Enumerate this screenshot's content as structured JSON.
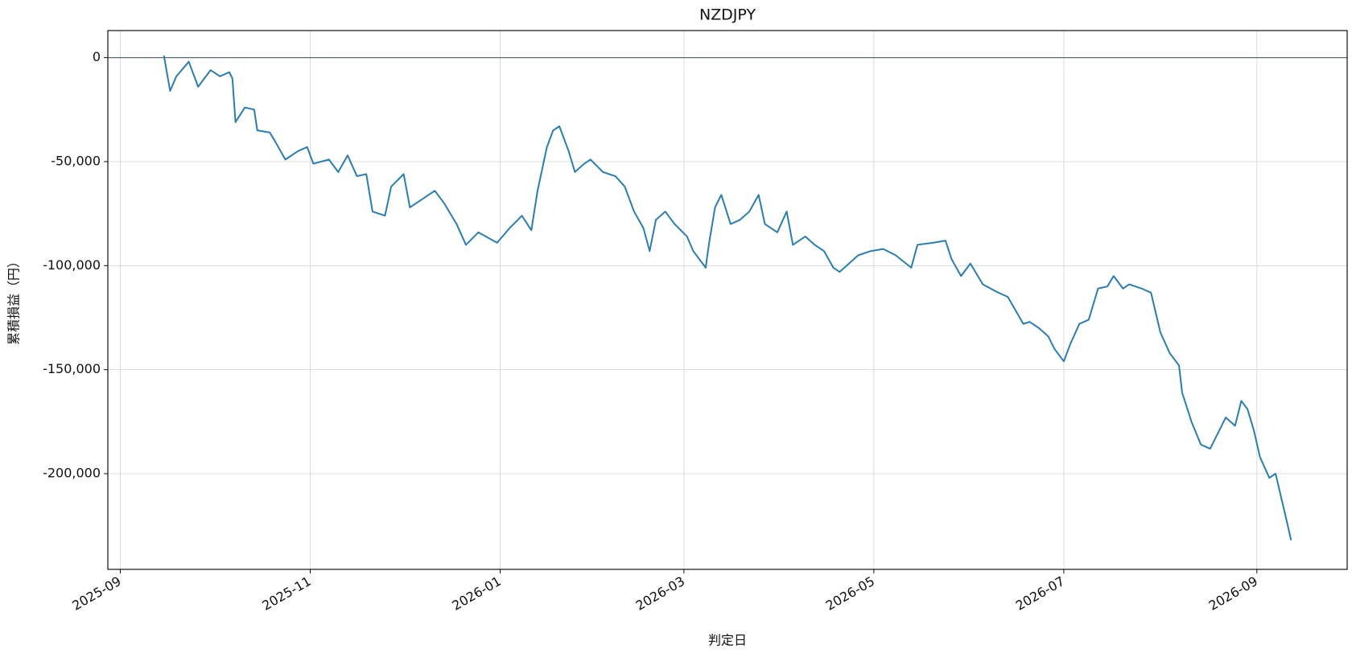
{
  "chart_data": {
    "type": "line",
    "title": "NZDJPY",
    "xlabel": "判定日",
    "ylabel": "累積損益（円）",
    "x": [
      "2025-09-15",
      "2025-09-17",
      "2025-09-19",
      "2025-09-23",
      "2025-09-26",
      "2025-09-30",
      "2025-10-03",
      "2025-10-06",
      "2025-10-07",
      "2025-10-08",
      "2025-10-11",
      "2025-10-14",
      "2025-10-15",
      "2025-10-19",
      "2025-10-21",
      "2025-10-24",
      "2025-10-28",
      "2025-10-31",
      "2025-11-02",
      "2025-11-07",
      "2025-11-10",
      "2025-11-13",
      "2025-11-16",
      "2025-11-19",
      "2025-11-21",
      "2025-11-25",
      "2025-11-27",
      "2025-12-01",
      "2025-12-03",
      "2025-12-07",
      "2025-12-11",
      "2025-12-14",
      "2025-12-18",
      "2025-12-21",
      "2025-12-25",
      "2025-12-31",
      "2026-01-04",
      "2026-01-08",
      "2026-01-11",
      "2026-01-13",
      "2026-01-16",
      "2026-01-18",
      "2026-01-20",
      "2026-01-23",
      "2026-01-25",
      "2026-01-28",
      "2026-01-30",
      "2026-02-03",
      "2026-02-07",
      "2026-02-10",
      "2026-02-13",
      "2026-02-16",
      "2026-02-18",
      "2026-02-20",
      "2026-02-23",
      "2026-02-26",
      "2026-03-02",
      "2026-03-04",
      "2026-03-08",
      "2026-03-09",
      "2026-03-11",
      "2026-03-13",
      "2026-03-16",
      "2026-03-19",
      "2026-03-22",
      "2026-03-25",
      "2026-03-27",
      "2026-03-31",
      "2026-04-03",
      "2026-04-05",
      "2026-04-09",
      "2026-04-12",
      "2026-04-15",
      "2026-04-18",
      "2026-04-20",
      "2026-04-23",
      "2026-04-26",
      "2026-04-30",
      "2026-05-04",
      "2026-05-08",
      "2026-05-13",
      "2026-05-15",
      "2026-05-20",
      "2026-05-24",
      "2026-05-26",
      "2026-05-29",
      "2026-06-01",
      "2026-06-05",
      "2026-06-10",
      "2026-06-13",
      "2026-06-18",
      "2026-06-20",
      "2026-06-23",
      "2026-06-26",
      "2026-06-28",
      "2026-07-01",
      "2026-07-03",
      "2026-07-06",
      "2026-07-09",
      "2026-07-12",
      "2026-07-15",
      "2026-07-17",
      "2026-07-20",
      "2026-07-22",
      "2026-07-26",
      "2026-07-29",
      "2026-08-01",
      "2026-08-04",
      "2026-08-07",
      "2026-08-08",
      "2026-08-11",
      "2026-08-14",
      "2026-08-17",
      "2026-08-20",
      "2026-08-22",
      "2026-08-25",
      "2026-08-27",
      "2026-08-29",
      "2026-08-31",
      "2026-09-02",
      "2026-09-05",
      "2026-09-07",
      "2026-09-10",
      "2026-09-12"
    ],
    "series": [
      {
        "name": "NZDJPY",
        "color": "#2a7db1",
        "values": [
          1000,
          -16000,
          -9000,
          -2000,
          -14000,
          -6000,
          -9000,
          -7000,
          -10000,
          -31000,
          -24000,
          -25000,
          -35000,
          -36000,
          -41000,
          -49000,
          -45000,
          -43000,
          -51000,
          -49000,
          -55000,
          -47000,
          -57000,
          -56000,
          -74000,
          -76000,
          -62000,
          -56000,
          -72000,
          -68000,
          -64000,
          -70000,
          -80000,
          -90000,
          -84000,
          -89000,
          -82000,
          -76000,
          -83000,
          -64000,
          -43000,
          -35000,
          -33000,
          -45000,
          -55000,
          -51000,
          -49000,
          -55000,
          -57000,
          -62000,
          -74000,
          -82000,
          -93000,
          -78000,
          -74000,
          -80000,
          -86000,
          -93000,
          -101000,
          -90000,
          -72000,
          -66000,
          -80000,
          -78000,
          -74000,
          -66000,
          -80000,
          -84000,
          -74000,
          -90000,
          -86000,
          -90000,
          -93000,
          -101000,
          -103000,
          -99000,
          -95000,
          -93000,
          -92000,
          -95000,
          -101000,
          -90000,
          -89000,
          -88000,
          -97000,
          -105000,
          -99000,
          -109000,
          -113000,
          -115000,
          -128000,
          -127000,
          -130000,
          -134000,
          -140000,
          -146000,
          -138000,
          -128000,
          -126000,
          -111000,
          -110000,
          -105000,
          -111000,
          -109000,
          -111000,
          -113000,
          -132000,
          -142000,
          -148000,
          -161000,
          -175000,
          -186000,
          -188000,
          -179000,
          -173000,
          -177000,
          -165000,
          -169000,
          -179000,
          -192000,
          -202000,
          -200000,
          -219000,
          -232000
        ]
      }
    ],
    "xlim": [
      "2025-08-28",
      "2026-09-30"
    ],
    "xticks": [
      "2025-09",
      "2025-11",
      "2026-01",
      "2026-03",
      "2026-05",
      "2026-07",
      "2026-09"
    ],
    "ylim": [
      13000,
      -246000
    ],
    "yticks": [
      {
        "value": 0,
        "label": "0"
      },
      {
        "value": -50000,
        "label": "-50,000"
      },
      {
        "value": -100000,
        "label": "-100,000"
      },
      {
        "value": -150000,
        "label": "-150,000"
      },
      {
        "value": -200000,
        "label": "-200,000"
      }
    ],
    "hline": 0,
    "grid": true
  }
}
